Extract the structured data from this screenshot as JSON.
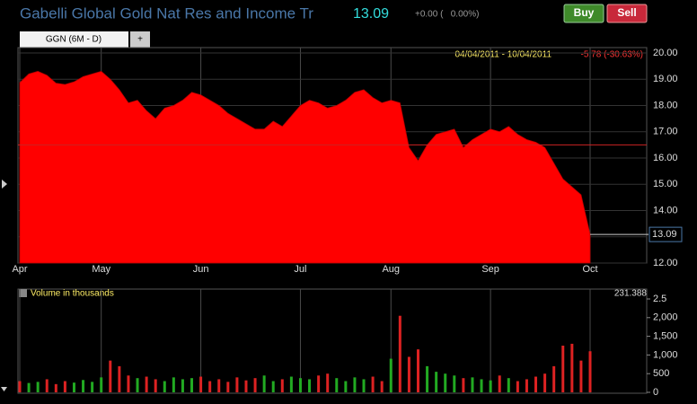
{
  "header": {
    "title": "Gabelli Global Gold Nat Res and Income Tr",
    "last": "13.09",
    "change": "+0.00 (   0.00%)",
    "buy": "Buy",
    "sell": "Sell",
    "tab": "GGN (6M - D)",
    "tab_add": "+"
  },
  "chart_data": [
    {
      "type": "area",
      "range_label": "04/04/2011 - 10/04/2011",
      "change_label": "-5.78 (-30.63%)",
      "categories": [
        "Apr",
        null,
        null,
        null,
        null,
        null,
        null,
        null,
        null,
        "May",
        null,
        null,
        null,
        null,
        null,
        null,
        null,
        null,
        null,
        null,
        "Jun",
        null,
        null,
        null,
        null,
        null,
        null,
        null,
        null,
        null,
        null,
        "Jul",
        null,
        null,
        null,
        null,
        null,
        null,
        null,
        null,
        null,
        "Aug",
        null,
        null,
        null,
        null,
        null,
        null,
        null,
        null,
        null,
        null,
        "Sep",
        null,
        null,
        null,
        null,
        null,
        null,
        null,
        null,
        null,
        null,
        "Oct"
      ],
      "series": [
        {
          "color": "#ff0000",
          "values": [
            18.87,
            19.2,
            19.3,
            19.15,
            18.85,
            18.8,
            18.9,
            19.1,
            19.2,
            19.3,
            19.0,
            18.6,
            18.1,
            18.2,
            17.8,
            17.5,
            17.9,
            18.0,
            18.2,
            18.5,
            18.4,
            18.2,
            18.0,
            17.7,
            17.5,
            17.3,
            17.1,
            17.1,
            17.4,
            17.2,
            17.6,
            18.0,
            18.2,
            18.1,
            17.9,
            18.0,
            18.2,
            18.5,
            18.6,
            18.3,
            18.1,
            18.2,
            18.1,
            16.4,
            15.9,
            16.5,
            16.9,
            17.0,
            17.1,
            16.4,
            16.7,
            16.9,
            17.1,
            17.0,
            17.2,
            16.9,
            16.7,
            16.6,
            16.4,
            15.8,
            15.2,
            14.9,
            14.6,
            13.09
          ]
        }
      ],
      "last_value_label": "13.09",
      "reference_line": 16.5,
      "reference_color": "#cc2222",
      "ylim": [
        12,
        20
      ],
      "yticks": [
        {
          "value": 20,
          "label": "20.00"
        },
        {
          "value": 19,
          "label": "19.00"
        },
        {
          "value": 18,
          "label": "18.00"
        },
        {
          "value": 17,
          "label": "17.00"
        },
        {
          "value": 16,
          "label": "16.00"
        },
        {
          "value": 15,
          "label": "15.00"
        },
        {
          "value": 14,
          "label": "14.00"
        },
        {
          "value": 13,
          "label": "13.00"
        },
        {
          "value": 12,
          "label": "12.00"
        }
      ],
      "grid": true
    },
    {
      "type": "bar",
      "label": "Volume in thousands",
      "readout": "231.388",
      "up_color": "#22aa22",
      "down_color": "#dd2222",
      "values": [
        300,
        250,
        280,
        350,
        220,
        300,
        260,
        330,
        280,
        400,
        850,
        700,
        450,
        380,
        420,
        350,
        300,
        400,
        350,
        380,
        420,
        300,
        350,
        280,
        400,
        320,
        380,
        450,
        300,
        350,
        420,
        380,
        350,
        450,
        500,
        380,
        300,
        400,
        350,
        420,
        300,
        900,
        2050,
        950,
        1150,
        700,
        550,
        500,
        450,
        380,
        400,
        350,
        320,
        450,
        380,
        300,
        350,
        420,
        500,
        700,
        1250,
        1300,
        850,
        1100
      ],
      "ylim": [
        0,
        2500
      ],
      "yticks": [
        {
          "value": 2500,
          "label": "2.5"
        },
        {
          "value": 2000,
          "label": "2,000"
        },
        {
          "value": 1500,
          "label": "1,500"
        },
        {
          "value": 1000,
          "label": "1,000"
        },
        {
          "value": 500,
          "label": "500"
        },
        0
      ]
    }
  ]
}
